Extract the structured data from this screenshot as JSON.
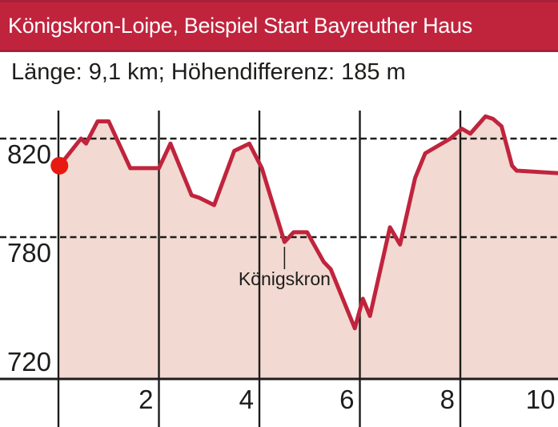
{
  "header": {
    "title": "Königskron-Loipe, Beispiel Start Bayreuther Haus",
    "bg_color": "#c0243d",
    "text_color": "#ffffff"
  },
  "subtitle": {
    "text": "Länge: 9,1 km; Höhendifferenz: 185 m"
  },
  "chart_data": {
    "type": "area",
    "x_ticks": [
      2,
      4,
      6,
      8,
      10
    ],
    "y_ticks": [
      820,
      780,
      720
    ],
    "xlim": [
      0,
      10
    ],
    "ylim": [
      720,
      835
    ],
    "grid": "on",
    "legend": "none",
    "dashed_gridlines_at": [
      820,
      780
    ],
    "vertical_gridlines_at": [
      0,
      2,
      4,
      6,
      8
    ],
    "series": [
      {
        "name": "elevation-profile",
        "points": [
          [
            0.02,
            809
          ],
          [
            0.45,
            820
          ],
          [
            0.55,
            818
          ],
          [
            0.78,
            827
          ],
          [
            1.0,
            827
          ],
          [
            1.43,
            808
          ],
          [
            2.0,
            808
          ],
          [
            2.23,
            818
          ],
          [
            2.65,
            797
          ],
          [
            2.8,
            796
          ],
          [
            3.1,
            793
          ],
          [
            3.5,
            815
          ],
          [
            3.8,
            818
          ],
          [
            4.05,
            808
          ],
          [
            4.5,
            778
          ],
          [
            4.68,
            782
          ],
          [
            4.95,
            782
          ],
          [
            5.28,
            770
          ],
          [
            5.42,
            767
          ],
          [
            5.9,
            743
          ],
          [
            6.06,
            755
          ],
          [
            6.2,
            748
          ],
          [
            6.6,
            784
          ],
          [
            6.8,
            777
          ],
          [
            7.1,
            804
          ],
          [
            7.3,
            814
          ],
          [
            7.8,
            820
          ],
          [
            8.03,
            824
          ],
          [
            8.2,
            822
          ],
          [
            8.5,
            829
          ],
          [
            8.65,
            828
          ],
          [
            8.82,
            825
          ],
          [
            9.03,
            809
          ],
          [
            9.12,
            807
          ],
          [
            9.95,
            806
          ]
        ]
      }
    ],
    "annotation": {
      "label": "Königskron",
      "x": 4.5,
      "y": 778
    },
    "start_marker": {
      "x": 0.02,
      "y": 809
    },
    "colors": {
      "line": "#c0243d",
      "fill": "#f2d9d1",
      "marker": "#e8190f",
      "grid": "#1d1d1b",
      "text": "#1d1d1b"
    }
  }
}
